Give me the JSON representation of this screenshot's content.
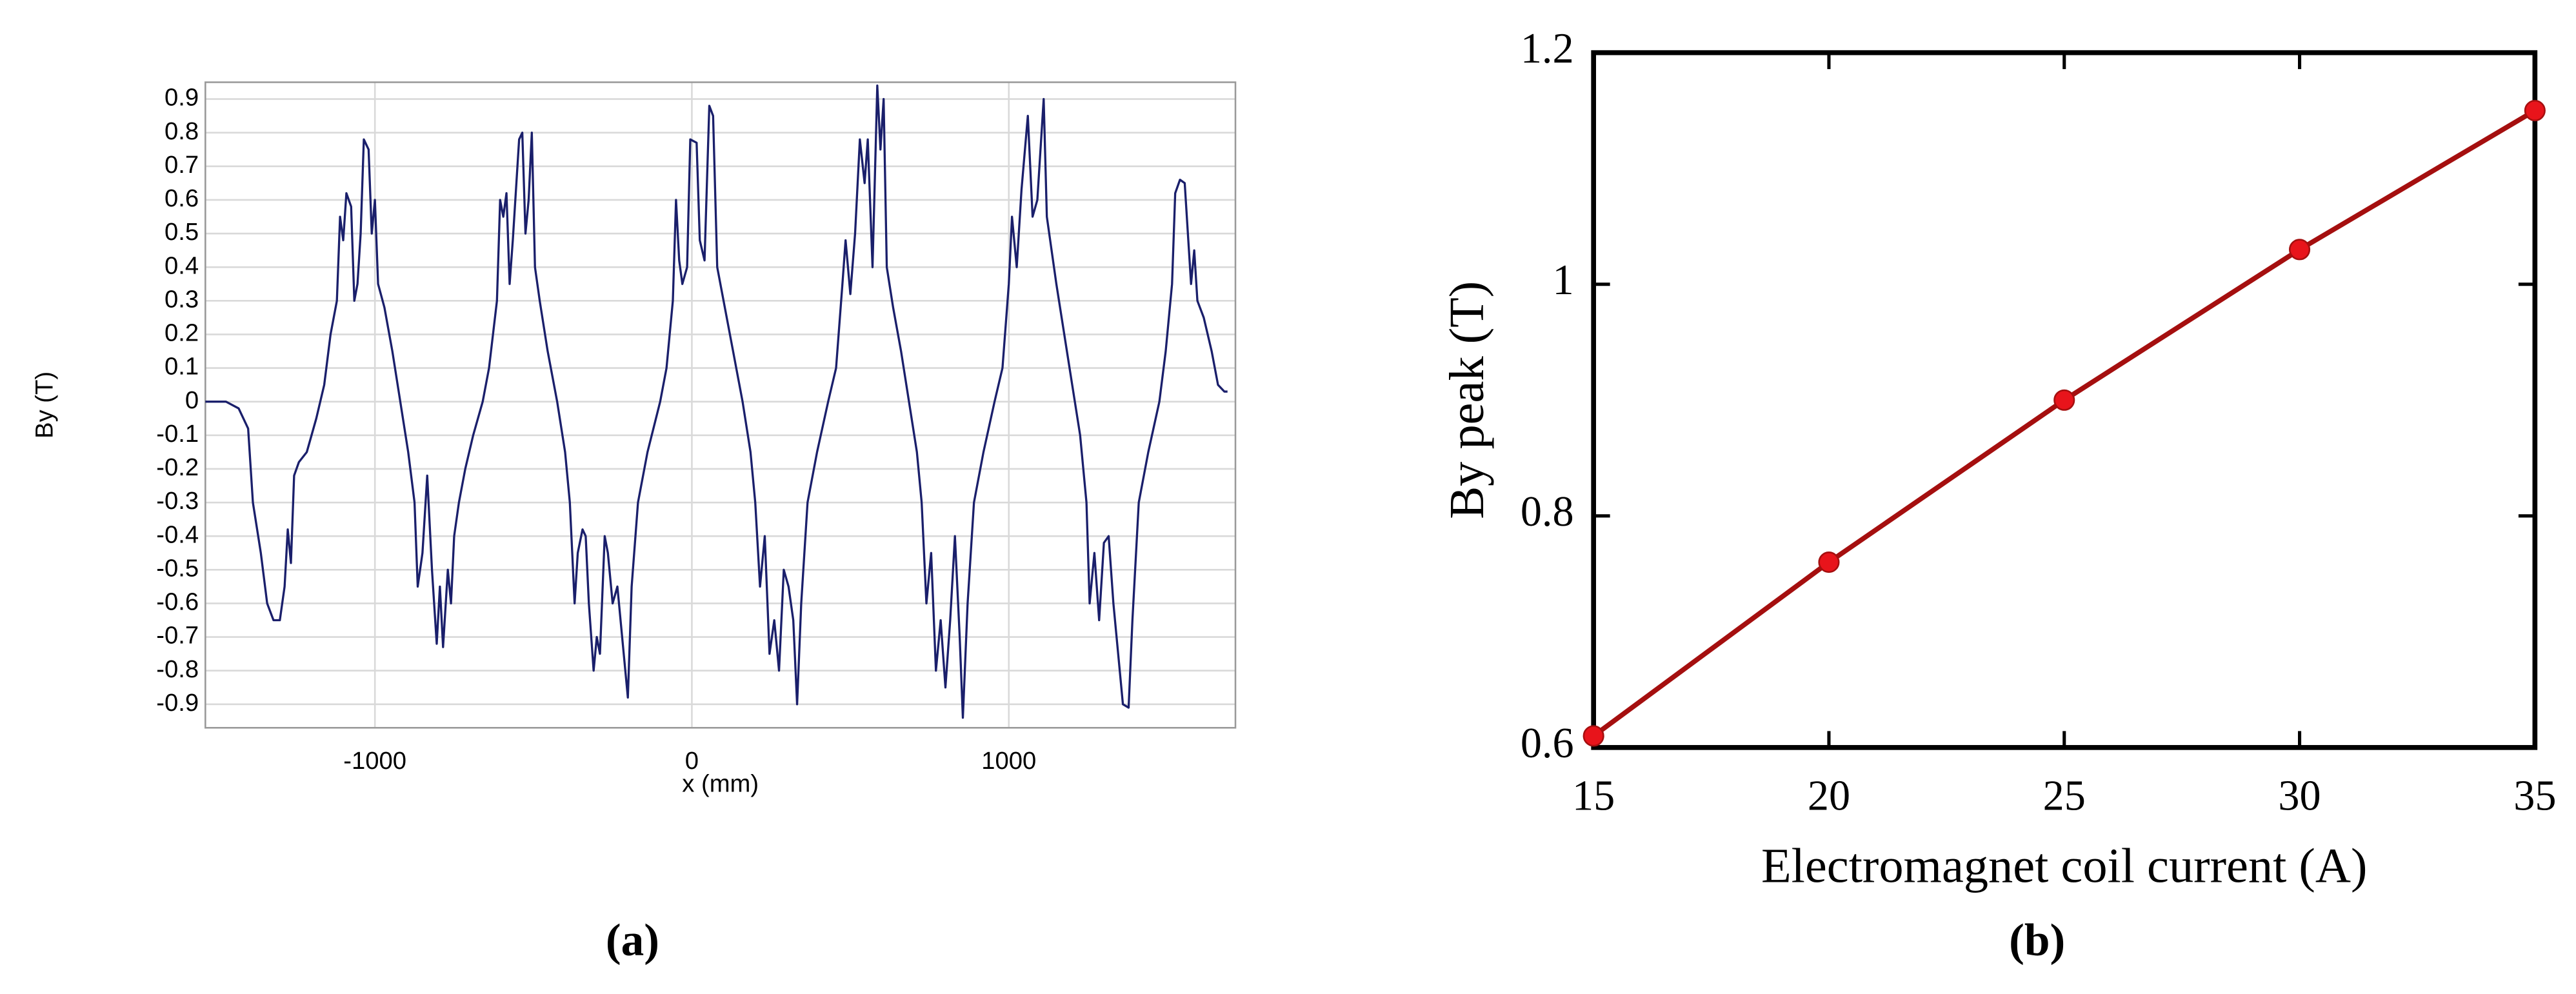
{
  "chart_data": [
    {
      "type": "line",
      "xlabel": "x (mm)",
      "ylabel": "By (T)",
      "caption": "(a)",
      "color": "#1a1f6b",
      "grid": true,
      "xlim": [
        -1535,
        1715
      ],
      "ylim": [
        -0.97,
        0.95
      ],
      "xticks": [
        -1000,
        0,
        1000
      ],
      "yticks": [
        0.9,
        0.8,
        0.7,
        0.6,
        0.5,
        0.4,
        0.3,
        0.2,
        0.1,
        0,
        -0.1,
        -0.2,
        -0.3,
        -0.4,
        -0.5,
        -0.6,
        -0.7,
        -0.8,
        -0.9
      ],
      "x": [
        -1535,
        -1470,
        -1430,
        -1400,
        -1385,
        -1360,
        -1340,
        -1320,
        -1300,
        -1285,
        -1275,
        -1265,
        -1255,
        -1240,
        -1215,
        -1185,
        -1160,
        -1140,
        -1120,
        -1110,
        -1100,
        -1090,
        -1075,
        -1065,
        -1055,
        -1045,
        -1035,
        -1020,
        -1010,
        -1000,
        -990,
        -970,
        -945,
        -920,
        -895,
        -875,
        -865,
        -850,
        -835,
        -820,
        -805,
        -795,
        -785,
        -770,
        -760,
        -750,
        -735,
        -715,
        -690,
        -660,
        -640,
        -615,
        -605,
        -595,
        -585,
        -575,
        -565,
        -545,
        -535,
        -525,
        -515,
        -505,
        -495,
        -480,
        -455,
        -425,
        -400,
        -385,
        -370,
        -360,
        -345,
        -335,
        -325,
        -310,
        -300,
        -290,
        -275,
        -265,
        -250,
        -235,
        -215,
        -202,
        -190,
        -170,
        -140,
        -100,
        -80,
        -60,
        -50,
        -40,
        -30,
        -15,
        -5,
        15,
        25,
        40,
        55,
        67,
        80,
        100,
        130,
        160,
        185,
        200,
        215,
        230,
        245,
        260,
        275,
        290,
        305,
        320,
        332,
        345,
        365,
        395,
        430,
        455,
        475,
        485,
        500,
        515,
        530,
        545,
        555,
        570,
        585,
        595,
        605,
        615,
        635,
        660,
        685,
        710,
        725,
        740,
        755,
        770,
        785,
        800,
        815,
        830,
        845,
        855,
        870,
        890,
        920,
        955,
        980,
        1000,
        1010,
        1025,
        1040,
        1060,
        1075,
        1090,
        1110,
        1120,
        1135,
        1150,
        1175,
        1200,
        1225,
        1245,
        1255,
        1270,
        1285,
        1300,
        1315,
        1330,
        1345,
        1360,
        1378,
        1390,
        1410,
        1440,
        1475,
        1495,
        1515,
        1525,
        1540,
        1555,
        1565,
        1575,
        1585,
        1595,
        1615,
        1640,
        1660,
        1680,
        1690
      ],
      "values": [
        0,
        0,
        -0.02,
        -0.08,
        -0.3,
        -0.45,
        -0.6,
        -0.65,
        -0.65,
        -0.55,
        -0.38,
        -0.48,
        -0.22,
        -0.18,
        -0.15,
        -0.05,
        0.05,
        0.2,
        0.3,
        0.55,
        0.48,
        0.62,
        0.58,
        0.3,
        0.35,
        0.5,
        0.78,
        0.75,
        0.5,
        0.6,
        0.35,
        0.28,
        0.15,
        0,
        -0.15,
        -0.3,
        -0.55,
        -0.45,
        -0.22,
        -0.5,
        -0.72,
        -0.55,
        -0.73,
        -0.5,
        -0.6,
        -0.4,
        -0.3,
        -0.2,
        -0.1,
        0,
        0.1,
        0.3,
        0.6,
        0.55,
        0.62,
        0.35,
        0.48,
        0.78,
        0.8,
        0.5,
        0.6,
        0.8,
        0.4,
        0.3,
        0.15,
        0,
        -0.15,
        -0.3,
        -0.6,
        -0.45,
        -0.38,
        -0.4,
        -0.6,
        -0.8,
        -0.7,
        -0.75,
        -0.4,
        -0.45,
        -0.6,
        -0.55,
        -0.75,
        -0.88,
        -0.55,
        -0.3,
        -0.15,
        0,
        0.1,
        0.3,
        0.6,
        0.42,
        0.35,
        0.4,
        0.78,
        0.77,
        0.48,
        0.42,
        0.88,
        0.85,
        0.4,
        0.3,
        0.15,
        0,
        -0.15,
        -0.3,
        -0.55,
        -0.4,
        -0.75,
        -0.65,
        -0.8,
        -0.5,
        -0.55,
        -0.65,
        -0.9,
        -0.6,
        -0.3,
        -0.15,
        0,
        0.1,
        0.35,
        0.48,
        0.32,
        0.5,
        0.78,
        0.65,
        0.78,
        0.4,
        0.94,
        0.75,
        0.9,
        0.4,
        0.28,
        0.15,
        0,
        -0.15,
        -0.3,
        -0.6,
        -0.45,
        -0.8,
        -0.65,
        -0.85,
        -0.65,
        -0.4,
        -0.7,
        -0.94,
        -0.6,
        -0.3,
        -0.15,
        0,
        0.1,
        0.35,
        0.55,
        0.4,
        0.63,
        0.85,
        0.55,
        0.6,
        0.9,
        0.55,
        0.45,
        0.35,
        0.2,
        0.05,
        -0.1,
        -0.3,
        -0.6,
        -0.45,
        -0.65,
        -0.42,
        -0.4,
        -0.6,
        -0.75,
        -0.9,
        -0.91,
        -0.65,
        -0.3,
        -0.15,
        0,
        0.15,
        0.35,
        0.62,
        0.66,
        0.65,
        0.5,
        0.35,
        0.45,
        0.3,
        0.25,
        0.15,
        0.05,
        0.03,
        0.03
      ]
    },
    {
      "type": "line-markers",
      "xlabel": "Electromagnet coil current (A)",
      "ylabel": "By peak (T)",
      "caption": "(b)",
      "color": "#a50f0f",
      "marker_color": "#e8141b",
      "grid": false,
      "xlim": [
        15,
        35
      ],
      "ylim": [
        0.6,
        1.2
      ],
      "xticks": [
        15,
        20,
        25,
        30,
        35
      ],
      "yticks": [
        0.6,
        0.8,
        1,
        1.2
      ],
      "x": [
        15,
        20,
        25,
        30,
        35
      ],
      "values": [
        0.61,
        0.76,
        0.9,
        1.03,
        1.15
      ]
    }
  ]
}
